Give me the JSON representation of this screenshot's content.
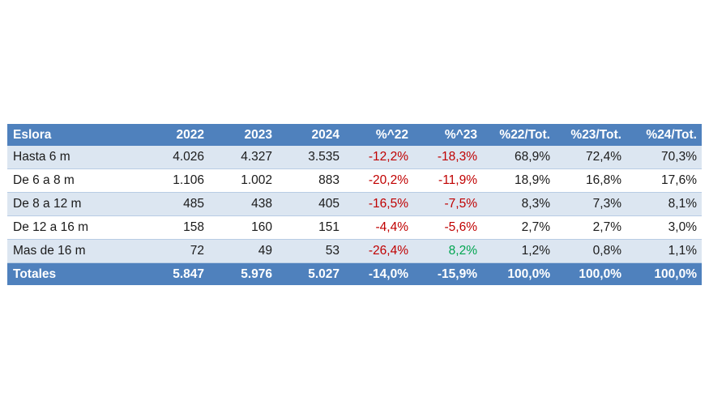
{
  "colors": {
    "header_bg": "#4f81bd",
    "band_bg": "#dce6f1",
    "negative": "#c00000",
    "positive": "#00a550"
  },
  "chart_data": {
    "type": "table",
    "columns": [
      "Eslora",
      "2022",
      "2023",
      "2024",
      "%^22",
      "%^23",
      "%22/Tot.",
      "%23/Tot.",
      "%24/Tot."
    ],
    "rows": [
      [
        "Hasta 6 m",
        "4.026",
        "4.327",
        "3.535",
        "-12,2%",
        "-18,3%",
        "68,9%",
        "72,4%",
        "70,3%"
      ],
      [
        "De 6 a 8 m",
        "1.106",
        "1.002",
        "883",
        "-20,2%",
        "-11,9%",
        "18,9%",
        "16,8%",
        "17,6%"
      ],
      [
        "De 8 a 12 m",
        "485",
        "438",
        "405",
        "-16,5%",
        "-7,5%",
        "8,3%",
        "7,3%",
        "8,1%"
      ],
      [
        "De 12 a 16 m",
        "158",
        "160",
        "151",
        "-4,4%",
        "-5,6%",
        "2,7%",
        "2,7%",
        "3,0%"
      ],
      [
        "Mas de 16 m",
        "72",
        "49",
        "53",
        "-26,4%",
        "8,2%",
        "1,2%",
        "0,8%",
        "1,1%"
      ]
    ],
    "totals": [
      "Totales",
      "5.847",
      "5.976",
      "5.027",
      "-14,0%",
      "-15,9%",
      "100,0%",
      "100,0%",
      "100,0%"
    ]
  }
}
